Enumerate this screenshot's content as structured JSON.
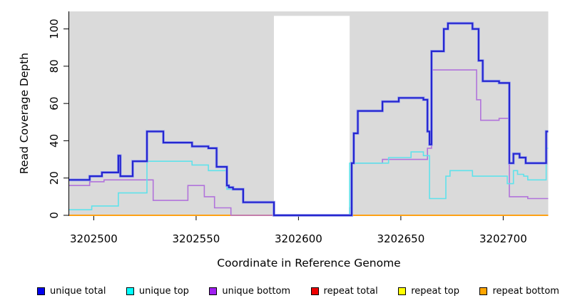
{
  "chart_data": {
    "type": "line",
    "subtype": "step-coverage",
    "title": "",
    "xlabel": "Coordinate in Reference Genome",
    "ylabel": "Read Coverage Depth",
    "xlim": [
      3202488,
      3202722
    ],
    "ylim": [
      0,
      109.4
    ],
    "x_ticks": [
      3202500,
      3202550,
      3202600,
      3202650,
      3202700
    ],
    "y_ticks": [
      0,
      20,
      40,
      60,
      80,
      100
    ],
    "grid": false,
    "plot_bg": "#DADADA",
    "page_bg": "#FFFFFF",
    "gap_region": {
      "from": 3202588,
      "to": 3202625,
      "color": "#FFFFFF",
      "top_value": 107
    },
    "legend_position": "bottom-horizontal",
    "legend": [
      {
        "label": "unique total",
        "swatch": "#0000EE"
      },
      {
        "label": "unique top",
        "swatch": "#00FFFF"
      },
      {
        "label": "unique bottom",
        "swatch": "#A020F0"
      },
      {
        "label": "repeat total",
        "swatch": "#EE0000"
      },
      {
        "label": "repeat top",
        "swatch": "#FFFF00"
      },
      {
        "label": "repeat bottom",
        "swatch": "#FFA500"
      }
    ],
    "series": [
      {
        "name": "repeat top",
        "color": "#FFFF00",
        "width": 1.6,
        "points": [
          [
            3202488,
            0
          ],
          [
            3202722,
            0
          ]
        ]
      },
      {
        "name": "repeat total",
        "color": "#E0463C",
        "width": 1.6,
        "points": [
          [
            3202488,
            0
          ],
          [
            3202722,
            0
          ]
        ]
      },
      {
        "name": "repeat bottom",
        "color": "#FFA215",
        "width": 2,
        "points": [
          [
            3202488,
            0
          ],
          [
            3202722,
            0
          ]
        ]
      },
      {
        "name": "unique bottom",
        "color": "#B173DB",
        "width": 1.6,
        "points": [
          [
            3202488,
            16
          ],
          [
            3202498,
            18
          ],
          [
            3202505,
            19
          ],
          [
            3202529,
            8
          ],
          [
            3202546,
            16
          ],
          [
            3202554,
            10
          ],
          [
            3202559,
            4
          ],
          [
            3202567,
            0
          ],
          [
            3202625,
            4
          ],
          [
            3202626,
            28
          ],
          [
            3202641,
            30
          ],
          [
            3202663,
            36
          ],
          [
            3202665,
            78
          ],
          [
            3202687,
            62
          ],
          [
            3202689,
            51
          ],
          [
            3202698,
            52
          ],
          [
            3202703,
            10
          ],
          [
            3202712,
            9
          ],
          [
            3202722,
            9
          ]
        ]
      },
      {
        "name": "unique top",
        "color": "#5FE2EB",
        "width": 1.6,
        "points": [
          [
            3202488,
            3
          ],
          [
            3202499,
            5
          ],
          [
            3202512,
            12
          ],
          [
            3202526,
            29
          ],
          [
            3202548,
            27
          ],
          [
            3202556,
            24
          ],
          [
            3202565,
            14
          ],
          [
            3202573,
            7
          ],
          [
            3202588,
            0
          ],
          [
            3202625,
            28
          ],
          [
            3202644,
            31
          ],
          [
            3202655,
            34
          ],
          [
            3202661,
            32
          ],
          [
            3202664,
            9
          ],
          [
            3202672,
            21
          ],
          [
            3202674,
            24
          ],
          [
            3202685,
            21
          ],
          [
            3202702,
            17
          ],
          [
            3202705,
            24
          ],
          [
            3202707,
            22
          ],
          [
            3202710,
            21
          ],
          [
            3202712,
            19
          ],
          [
            3202721,
            36
          ],
          [
            3202722,
            36
          ]
        ]
      },
      {
        "name": "unique total",
        "color": "#2626CF",
        "halo": "#9FA8EF",
        "width": 2.2,
        "points": [
          [
            3202488,
            19
          ],
          [
            3202498,
            21
          ],
          [
            3202504,
            23
          ],
          [
            3202512,
            32
          ],
          [
            3202513,
            21
          ],
          [
            3202519,
            29
          ],
          [
            3202526,
            45
          ],
          [
            3202534,
            39
          ],
          [
            3202548,
            37
          ],
          [
            3202556,
            36
          ],
          [
            3202560,
            26
          ],
          [
            3202565,
            16
          ],
          [
            3202566,
            15
          ],
          [
            3202568,
            14
          ],
          [
            3202573,
            7
          ],
          [
            3202588,
            0
          ],
          [
            3202626,
            28
          ],
          [
            3202627,
            44
          ],
          [
            3202629,
            56
          ],
          [
            3202641,
            61
          ],
          [
            3202649,
            63
          ],
          [
            3202661,
            62
          ],
          [
            3202663,
            45
          ],
          [
            3202664,
            38
          ],
          [
            3202665,
            88
          ],
          [
            3202671,
            100
          ],
          [
            3202673,
            103
          ],
          [
            3202685,
            100
          ],
          [
            3202688,
            83
          ],
          [
            3202690,
            72
          ],
          [
            3202698,
            71
          ],
          [
            3202703,
            28
          ],
          [
            3202705,
            33
          ],
          [
            3202708,
            31
          ],
          [
            3202711,
            28
          ],
          [
            3202721,
            45
          ],
          [
            3202722,
            45
          ]
        ]
      }
    ]
  }
}
